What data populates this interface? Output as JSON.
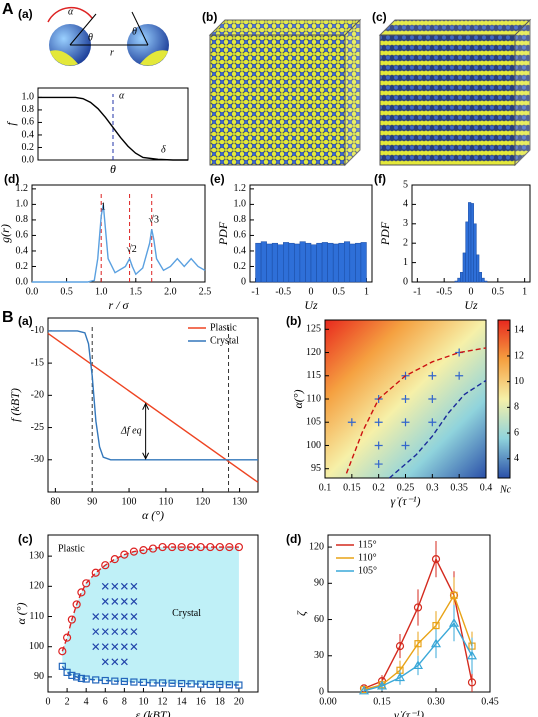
{
  "figure": {
    "sections": [
      "A",
      "B"
    ]
  },
  "images": [
    {
      "panel": "(b)"
    },
    {
      "panel": "(c)"
    }
  ],
  "chart_data": [
    {
      "type": "line",
      "panel": "(a)",
      "schematic_labels": [
        "α",
        "θ",
        "θ",
        "r"
      ],
      "xlabel": "θ",
      "ylabel": "f",
      "xlim": [
        0,
        10
      ],
      "ylim": [
        0,
        1.15
      ],
      "yticks": [
        {
          "value": 0,
          "label": "0.0"
        },
        0.2,
        0.4,
        0.6,
        0.8,
        {
          "value": 1,
          "label": "1.0"
        }
      ],
      "vlines": [
        5
      ],
      "vline_color": "#2233aa",
      "annotations": [
        "α",
        "δ"
      ],
      "series": [
        {
          "color": "#000000",
          "x": [
            0,
            1,
            2,
            2.5,
            3,
            3.5,
            4,
            4.5,
            5,
            5.5,
            6,
            6.5,
            7,
            8,
            9,
            10
          ],
          "values": [
            1,
            1,
            1,
            1,
            0.98,
            0.92,
            0.82,
            0.68,
            0.52,
            0.36,
            0.22,
            0.11,
            0.04,
            0.01,
            0,
            0
          ]
        }
      ]
    },
    {
      "type": "line",
      "panel": "(d)",
      "xlabel": "r / σ",
      "ylabel": "g(r)",
      "xlim": [
        0,
        2.5
      ],
      "xticks": [
        {
          "value": 0,
          "label": "0.0"
        },
        0.5,
        {
          "value": 1,
          "label": "1.0"
        },
        1.5,
        {
          "value": 2,
          "label": "2.0"
        },
        2.5
      ],
      "ylim": [
        0,
        1.25
      ],
      "yticks": [
        {
          "value": 0,
          "label": "0.0"
        },
        0.2,
        0.4,
        0.6,
        0.8,
        {
          "value": 1,
          "label": "1.0"
        },
        1.2
      ],
      "vlines": [
        1,
        1.41,
        1.73
      ],
      "vline_color": "#dd2222",
      "annotations": [
        "1",
        "√2",
        "√3"
      ],
      "series": [
        {
          "color": "#5aa0e0",
          "x": [
            0,
            0.8,
            0.9,
            0.95,
            1,
            1.03,
            1.06,
            1.1,
            1.2,
            1.35,
            1.41,
            1.45,
            1.5,
            1.6,
            1.7,
            1.73,
            1.76,
            1.8,
            1.9,
            2,
            2.1,
            2.2,
            2.3,
            2.4,
            2.5
          ],
          "values": [
            0,
            0,
            0.02,
            0.3,
            0.85,
            1,
            0.7,
            0.3,
            0.12,
            0.2,
            0.3,
            0.2,
            0.1,
            0.18,
            0.5,
            0.68,
            0.55,
            0.3,
            0.15,
            0.2,
            0.3,
            0.2,
            0.3,
            0.2,
            0.15
          ]
        }
      ]
    },
    {
      "type": "histogram",
      "panel": "(e)",
      "xlabel": "Uz",
      "ylabel": "PDF",
      "color": "#2e6fd8",
      "xlim": [
        -1.1,
        1.1
      ],
      "xticks": [
        -1,
        -0.5,
        0,
        0.5,
        1
      ],
      "ylim": [
        0,
        1.25
      ],
      "yticks": [
        0,
        0.2,
        0.4,
        0.6,
        0.8,
        {
          "value": 1,
          "label": "1.0"
        },
        1.2
      ],
      "bins": [
        -1,
        -0.9,
        -0.8,
        -0.7,
        -0.6,
        -0.5,
        -0.4,
        -0.3,
        -0.2,
        -0.1,
        0,
        0.1,
        0.2,
        0.3,
        0.4,
        0.5,
        0.6,
        0.7,
        0.8,
        0.9,
        1
      ],
      "counts": [
        0.5,
        0.52,
        0.49,
        0.5,
        0.48,
        0.51,
        0.5,
        0.49,
        0.52,
        0.5,
        0.48,
        0.5,
        0.51,
        0.5,
        0.49,
        0.5,
        0.52,
        0.49,
        0.5,
        0.51
      ]
    },
    {
      "type": "histogram",
      "panel": "(f)",
      "xlabel": "Uz",
      "ylabel": "PDF",
      "color": "#2e6fd8",
      "xlim": [
        -1.1,
        1.1
      ],
      "xticks": [
        -1,
        -0.5,
        0,
        0.5,
        1
      ],
      "ylim": [
        0,
        5
      ],
      "yticks": [
        0,
        1,
        2,
        3,
        4,
        5
      ],
      "bins": [
        -0.3,
        -0.25,
        -0.2,
        -0.15,
        -0.1,
        -0.05,
        0,
        0.05,
        0.1,
        0.15,
        0.2,
        0.25,
        0.3
      ],
      "counts": [
        0.05,
        0.2,
        0.5,
        1.5,
        3.1,
        4.1,
        4.05,
        3,
        1.4,
        0.5,
        0.2,
        0.05
      ]
    },
    {
      "type": "line",
      "panel": "(a)",
      "xlabel": "α (°)",
      "ylabel": "f (kBT)",
      "xlim": [
        78,
        135
      ],
      "xticks": [
        80,
        90,
        100,
        110,
        120,
        130
      ],
      "ylim": [
        -35,
        -8
      ],
      "yticks": [
        -10,
        -15,
        -20,
        -25,
        -30
      ],
      "vlines": [
        90,
        127
      ],
      "vline_color": "#333333",
      "annotations": [
        "Δf eq"
      ],
      "legend": "upper right",
      "series": [
        {
          "name": "Plastic",
          "color": "#ee4422",
          "x": [
            78,
            135
          ],
          "values": [
            -10.4,
            -33.5
          ]
        },
        {
          "name": "Crystal",
          "color": "#3377bb",
          "x": [
            78,
            86,
            88,
            89,
            90,
            91,
            92,
            93,
            95,
            135
          ],
          "values": [
            -10,
            -10,
            -10.3,
            -12,
            -17,
            -24,
            -28,
            -29.6,
            -30,
            -30
          ]
        }
      ]
    },
    {
      "type": "scatter",
      "panel": "(b)",
      "xlabel": "γ̇ (τ⁻¹)",
      "ylabel": "α(°)",
      "xlim": [
        0.1,
        0.4
      ],
      "xticks": [
        0.1,
        0.15,
        0.2,
        0.25,
        0.3,
        0.35,
        0.4
      ],
      "ylim": [
        93,
        127
      ],
      "yticks": [
        95,
        100,
        105,
        110,
        115,
        120,
        125
      ],
      "colorbar": {
        "label": "Nc",
        "lim": [
          2.5,
          14.8
        ],
        "ticks": [
          4,
          6,
          8,
          10,
          12,
          14
        ],
        "colors": [
          "#2a4fa8",
          "#8fd3dc",
          "#f6f0a8",
          "#f5a040",
          "#e8281e"
        ]
      },
      "series": [
        {
          "marker": "plus",
          "color": "#3366cc",
          "x": [
            0.15,
            0.2,
            0.2,
            0.2,
            0.2,
            0.25,
            0.25,
            0.25,
            0.25,
            0.3,
            0.3,
            0.3,
            0.35,
            0.35
          ],
          "values": [
            105,
            96,
            100,
            105,
            110,
            100,
            105,
            110,
            115,
            105,
            110,
            115,
            115,
            120
          ]
        },
        {
          "line": "dashed",
          "color": "#cc1111",
          "x": [
            0.14,
            0.17,
            0.2,
            0.25,
            0.3,
            0.35,
            0.4
          ],
          "values": [
            94,
            103,
            110,
            115,
            118,
            120,
            121
          ]
        },
        {
          "line": "dashed",
          "color": "#1a2a9a",
          "x": [
            0.22,
            0.27,
            0.3,
            0.33,
            0.36,
            0.4
          ],
          "values": [
            93,
            98,
            102,
            107,
            111,
            114
          ]
        }
      ]
    },
    {
      "type": "scatter",
      "panel": "(c)",
      "xlabel": "ε (kBT)",
      "ylabel": "α (°)",
      "xlim": [
        0,
        22
      ],
      "xticks": [
        0,
        2,
        4,
        6,
        8,
        10,
        12,
        14,
        16,
        18,
        20
      ],
      "ylim": [
        85,
        137
      ],
      "yticks": [
        90,
        100,
        110,
        120,
        130
      ],
      "region_fill": "#bff0f7",
      "region_labels": [
        "Plastic",
        "Crystal"
      ],
      "series": [
        {
          "marker": "circle",
          "line": "dashed",
          "color": "#dd2222",
          "x": [
            1.5,
            2,
            2.5,
            3,
            3.5,
            4,
            5,
            6,
            7,
            8,
            9,
            10,
            11,
            12,
            13,
            14,
            15,
            16,
            17,
            18,
            19,
            20
          ],
          "values": [
            98.5,
            103,
            109,
            114,
            118,
            121,
            124.5,
            127,
            129,
            130.5,
            131.5,
            132,
            132.5,
            133,
            133,
            133,
            133,
            133,
            133,
            133,
            133,
            133
          ]
        },
        {
          "marker": "square",
          "line": "dashed",
          "color": "#2266bb",
          "x": [
            1.5,
            2,
            2.5,
            3,
            3.5,
            4,
            5,
            6,
            7,
            8,
            9,
            10,
            11,
            12,
            13,
            14,
            15,
            16,
            17,
            18,
            19,
            20
          ],
          "values": [
            93.5,
            91.5,
            90.5,
            90,
            89.5,
            89.3,
            89,
            88.8,
            88.6,
            88.5,
            88.3,
            88.2,
            88,
            88,
            87.9,
            87.8,
            87.7,
            87.6,
            87.5,
            87.5,
            87.4,
            87.3
          ]
        },
        {
          "marker": "cross",
          "color": "#2244aa",
          "x": [
            6,
            7,
            8,
            9,
            6,
            7,
            8,
            9,
            5,
            6,
            7,
            8,
            9,
            5,
            6,
            7,
            8,
            9,
            5,
            6,
            7,
            8,
            9,
            6,
            7,
            8
          ],
          "values": [
            120,
            120,
            120,
            120,
            115,
            115,
            115,
            115,
            110,
            110,
            110,
            110,
            110,
            105,
            105,
            105,
            105,
            105,
            100,
            100,
            100,
            100,
            100,
            95,
            95,
            95
          ]
        }
      ]
    },
    {
      "type": "scatter",
      "panel": "(d)",
      "xlabel": "γ̇ (τ⁻¹)",
      "ylabel": "ζ",
      "xlim": [
        0,
        0.45
      ],
      "xticks": [
        {
          "value": 0,
          "label": "0.00"
        },
        0.15,
        {
          "value": 0.3,
          "label": "0.30"
        },
        0.45
      ],
      "ylim": [
        0,
        130
      ],
      "yticks": [
        0,
        30,
        60,
        90,
        120
      ],
      "legend": "upper left",
      "series": [
        {
          "name": "115°",
          "marker": "circle",
          "line": "solid",
          "color": "#d42a1e",
          "x": [
            0.1,
            0.15,
            0.2,
            0.25,
            0.3,
            0.35,
            0.4
          ],
          "values": [
            3,
            9,
            38,
            70,
            110,
            80,
            8
          ],
          "errors": [
            2,
            5,
            10,
            15,
            15,
            20,
            8
          ]
        },
        {
          "name": "110°",
          "marker": "square",
          "line": "solid",
          "color": "#e8a317",
          "x": [
            0.1,
            0.15,
            0.2,
            0.25,
            0.3,
            0.35,
            0.4
          ],
          "values": [
            2,
            6,
            18,
            40,
            55,
            80,
            38
          ],
          "errors": [
            2,
            4,
            8,
            10,
            12,
            15,
            12
          ]
        },
        {
          "name": "105°",
          "marker": "triangle",
          "line": "solid",
          "color": "#3aa8d8",
          "x": [
            0.1,
            0.15,
            0.2,
            0.25,
            0.3,
            0.35,
            0.4
          ],
          "values": [
            1,
            5,
            12,
            22,
            40,
            57,
            30
          ],
          "errors": [
            1,
            4,
            6,
            8,
            12,
            15,
            15
          ]
        }
      ]
    }
  ]
}
